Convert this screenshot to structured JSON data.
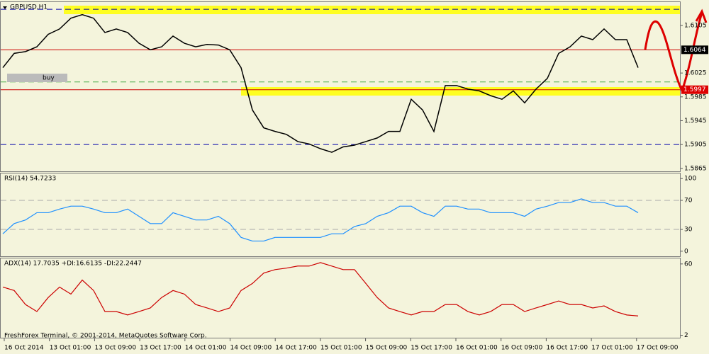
{
  "chart_data": [
    {
      "type": "line",
      "title": "GBPUSD,H1",
      "annotation": "buy",
      "color": "#000000",
      "ylim": [
        1.586,
        1.6144
      ],
      "yticks": [
        1.6105,
        1.6025,
        1.5985,
        1.5945,
        1.5905,
        1.5865
      ],
      "levels": [
        {
          "value": 1.6132,
          "color": "#0000aa",
          "dashed": true
        },
        {
          "value": 1.6064,
          "color": "#cc0000",
          "dashed": false
        },
        {
          "value": 1.601,
          "color": "#44aa44",
          "dashed": true
        },
        {
          "value": 1.5997,
          "color": "#cc0000",
          "dashed": false
        },
        {
          "value": 1.5905,
          "color": "#0000aa",
          "dashed": true
        }
      ],
      "price_labels": [
        {
          "value": 1.6064,
          "color": "#000000"
        },
        {
          "value": 1.5997,
          "color": "#dd0000"
        }
      ],
      "values": [
        1.6034,
        1.6058,
        1.6061,
        1.6069,
        1.609,
        1.6099,
        1.6117,
        1.6123,
        1.6117,
        1.6093,
        1.6099,
        1.6093,
        1.6075,
        1.6064,
        1.6069,
        1.6087,
        1.6075,
        1.6069,
        1.6073,
        1.6072,
        1.6064,
        1.6034,
        1.5963,
        1.5933,
        1.5927,
        1.5922,
        1.591,
        1.5906,
        1.5898,
        1.5892,
        1.5901,
        1.5904,
        1.591,
        1.5916,
        1.5927,
        1.5927,
        1.5981,
        1.5963,
        1.5927,
        1.6004,
        1.6004,
        1.5998,
        1.5995,
        1.5987,
        1.5981,
        1.5995,
        1.5975,
        1.5998,
        1.6016,
        1.6058,
        1.6069,
        1.6087,
        1.6081,
        1.6099,
        1.6081,
        1.6081,
        1.6034
      ]
    },
    {
      "type": "line",
      "title": "RSI(14) 54.7233",
      "color": "#1e90ff",
      "ylim": [
        -7,
        107
      ],
      "yticks": [
        100,
        70,
        30,
        0
      ],
      "levels": [
        {
          "value": 70,
          "color": "#aaaaaa",
          "dashed": true
        },
        {
          "value": 30,
          "color": "#aaaaaa",
          "dashed": true
        }
      ],
      "values": [
        24,
        38,
        43,
        53,
        53,
        58,
        62,
        62,
        58,
        53,
        53,
        58,
        48,
        38,
        38,
        53,
        48,
        43,
        43,
        48,
        38,
        19,
        14,
        14,
        19,
        19,
        19,
        19,
        19,
        24,
        24,
        34,
        38,
        48,
        53,
        62,
        62,
        53,
        48,
        62,
        62,
        58,
        58,
        53,
        53,
        53,
        48,
        58,
        62,
        67,
        67,
        72,
        67,
        67,
        62,
        62,
        53
      ]
    },
    {
      "type": "line",
      "title": "ADX(14) 17.7035 +DI:16.6135 -DI:22.2447",
      "footer": "FreshForex Terminal, © 2001-2014, MetaQuotes Software Corp.",
      "color": "#cc0000",
      "ylim": [
        0,
        64.5
      ],
      "yticks": [
        60,
        2
      ],
      "levels": [],
      "values": [
        41.2,
        38.4,
        27,
        21.3,
        32.7,
        41.2,
        35.5,
        46.9,
        38.4,
        21.3,
        21.3,
        18.5,
        21.3,
        24.2,
        32.7,
        38.4,
        35.5,
        27,
        24.2,
        21.3,
        24.2,
        38.4,
        44.1,
        52.6,
        55.4,
        56.6,
        58.3,
        58.3,
        61.1,
        58.3,
        55.4,
        55.4,
        44.1,
        32.7,
        24.2,
        21.3,
        18.5,
        21.3,
        21.3,
        27,
        27,
        21.3,
        18.5,
        21.3,
        27,
        27,
        21.3,
        24.2,
        27,
        29.9,
        27,
        27,
        24.2,
        25.9,
        21.3,
        18.5,
        17.7
      ]
    }
  ],
  "x_labels": [
    "16 Oct 2014",
    "13 Oct 01:00",
    "13 Oct 09:00",
    "13 Oct 17:00",
    "14 Oct 01:00",
    "14 Oct 09:00",
    "14 Oct 17:00",
    "15 Oct 01:00",
    "15 Oct 09:00",
    "15 Oct 17:00",
    "16 Oct 01:00",
    "16 Oct 09:00",
    "16 Oct 17:00",
    "17 Oct 01:00",
    "17 Oct 09:00"
  ]
}
